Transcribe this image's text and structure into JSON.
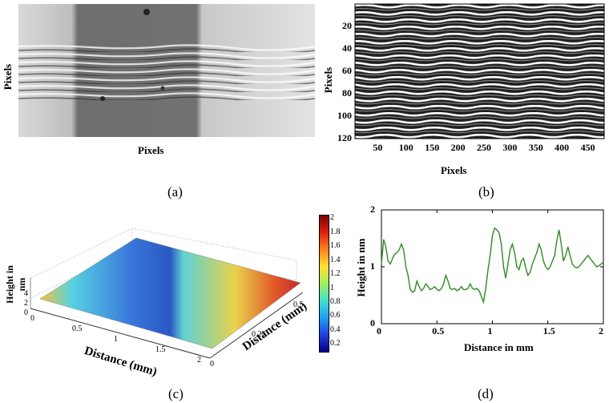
{
  "chart_data": [
    {
      "panel": "(a)",
      "type": "other",
      "xlabel": "Pixels",
      "ylabel": "Pixels",
      "description_kind": "grayscale fringe image"
    },
    {
      "panel": "(b)",
      "type": "heatmap",
      "xlabel": "Pixels",
      "ylabel": "Pixels",
      "xticks": [
        50,
        100,
        150,
        200,
        250,
        300,
        350,
        400,
        450
      ],
      "yticks": [
        20,
        40,
        60,
        80,
        100,
        120
      ],
      "xlim": [
        0,
        480
      ],
      "ylim": [
        0,
        120
      ]
    },
    {
      "panel": "(c)",
      "type": "surface",
      "xlabel": "Distance (mm)",
      "ylabel": "Distance (mm)",
      "zlabel": "Height in nm",
      "xticks": [
        "0",
        "0.5",
        "1",
        "1.5",
        "2"
      ],
      "yticks": [
        "0",
        "0.25",
        "0.5"
      ],
      "zticks": [
        "0",
        "2",
        "4"
      ],
      "colorbar_ticks": [
        "0.2",
        "0.4",
        "0.6",
        "0.8",
        "1",
        "1.2",
        "1.4",
        "1.6",
        "1.8",
        "2"
      ],
      "colorbar_range": [
        0.1,
        2.05
      ],
      "colormap": "jet"
    },
    {
      "panel": "(d)",
      "type": "line",
      "xlabel": "Distance in mm",
      "ylabel": "Height in nm",
      "xlim": [
        0,
        2
      ],
      "ylim": [
        0,
        2
      ],
      "xticks": [
        "0",
        "0.5",
        "1",
        "1.5",
        "2"
      ],
      "yticks": [
        "0",
        "1",
        "2"
      ],
      "line_color": "#2e8b22",
      "series": [
        {
          "x": [
            0,
            0.02,
            0.04,
            0.06,
            0.08,
            0.1,
            0.12,
            0.14,
            0.16,
            0.18,
            0.2,
            0.22,
            0.24,
            0.26,
            0.28,
            0.3,
            0.32,
            0.34,
            0.36,
            0.38,
            0.4,
            0.42,
            0.44,
            0.46,
            0.48,
            0.5,
            0.52,
            0.54,
            0.56,
            0.58,
            0.6,
            0.62,
            0.64,
            0.66,
            0.68,
            0.7,
            0.72,
            0.74,
            0.76,
            0.78,
            0.8,
            0.82,
            0.84,
            0.86,
            0.88,
            0.9,
            0.92,
            0.94,
            0.96,
            0.98,
            1.0,
            1.02,
            1.04,
            1.06,
            1.08,
            1.1,
            1.12,
            1.14,
            1.16,
            1.18,
            1.2,
            1.22,
            1.24,
            1.26,
            1.28,
            1.3,
            1.32,
            1.34,
            1.36,
            1.38,
            1.4,
            1.42,
            1.44,
            1.46,
            1.48,
            1.5,
            1.52,
            1.54,
            1.56,
            1.58,
            1.6,
            1.62,
            1.64,
            1.66,
            1.68,
            1.7,
            1.72,
            1.74,
            1.76,
            1.78,
            1.8,
            1.82,
            1.84,
            1.86,
            1.88,
            1.9,
            1.92,
            1.94,
            1.96,
            1.98,
            2.0
          ],
          "y": [
            1.05,
            1.48,
            1.35,
            1.1,
            1.05,
            1.15,
            1.22,
            1.25,
            1.3,
            1.4,
            1.3,
            1.0,
            0.85,
            0.6,
            0.55,
            0.58,
            0.75,
            0.65,
            0.58,
            0.62,
            0.7,
            0.65,
            0.6,
            0.62,
            0.65,
            0.6,
            0.58,
            0.62,
            0.7,
            0.85,
            0.75,
            0.62,
            0.6,
            0.62,
            0.58,
            0.6,
            0.65,
            0.6,
            0.6,
            0.62,
            0.7,
            0.62,
            0.6,
            0.62,
            0.58,
            0.48,
            0.38,
            0.62,
            0.95,
            1.2,
            1.55,
            1.68,
            1.65,
            1.6,
            1.4,
            1.0,
            0.8,
            1.05,
            1.3,
            1.4,
            1.25,
            1.0,
            0.95,
            1.1,
            1.15,
            0.98,
            0.85,
            0.9,
            1.05,
            1.15,
            1.25,
            1.4,
            1.3,
            1.1,
            1.0,
            0.95,
            1.0,
            1.1,
            1.2,
            1.45,
            1.65,
            1.4,
            1.1,
            1.2,
            1.35,
            1.2,
            1.05,
            1.0,
            0.98,
            1.0,
            1.05,
            1.1,
            1.15,
            1.2,
            1.15,
            1.1,
            1.05,
            1.0,
            1.02,
            1.05,
            1.08
          ]
        }
      ]
    }
  ]
}
